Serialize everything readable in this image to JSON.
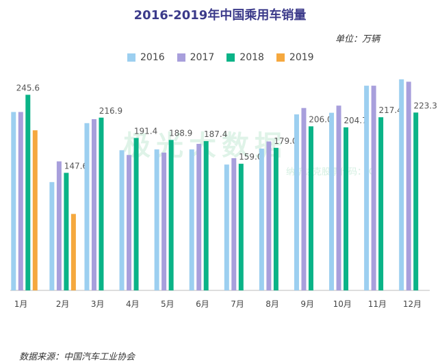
{
  "chart_data": {
    "type": "bar",
    "title": "2016-2019年中国乘用车销量",
    "unit_label": "单位：万辆",
    "source": "数据来源：中国汽车工业协会",
    "categories": [
      "1月",
      "2月",
      "3月",
      "4月",
      "5月",
      "6月",
      "7月",
      "8月",
      "9月",
      "10月",
      "11月",
      "12月"
    ],
    "series": [
      {
        "name": "2016",
        "color": "#9ccff0",
        "values": [
          224,
          136,
          210,
          176,
          177,
          177,
          158,
          178,
          221,
          223,
          257,
          265
        ]
      },
      {
        "name": "2017",
        "color": "#a89fdc",
        "values": [
          224,
          162,
          215,
          170,
          173,
          184,
          166,
          187,
          229,
          232,
          257,
          262
        ]
      },
      {
        "name": "2018",
        "color": "#0ab387",
        "values": [
          245.6,
          147.6,
          216.9,
          191.4,
          188.9,
          187.4,
          159.0,
          179.0,
          206.0,
          204.7,
          217.4,
          223.3
        ]
      },
      {
        "name": "2019",
        "color": "#f5a83e",
        "values": [
          201,
          96,
          null,
          null,
          null,
          null,
          null,
          null,
          null,
          null,
          null,
          null
        ]
      }
    ],
    "data_labels": [
      "245.6",
      "147.6",
      "216.9",
      "191.4",
      "188.9",
      "187.4",
      "159.0",
      "179.0",
      "206.0",
      "204.7",
      "217.4",
      "223.3"
    ],
    "ylim": [
      0,
      270
    ],
    "grid": false,
    "legend_position": "top"
  },
  "watermark": {
    "text": "极光大数据",
    "sub": "纳斯达克股票代码：JG"
  }
}
